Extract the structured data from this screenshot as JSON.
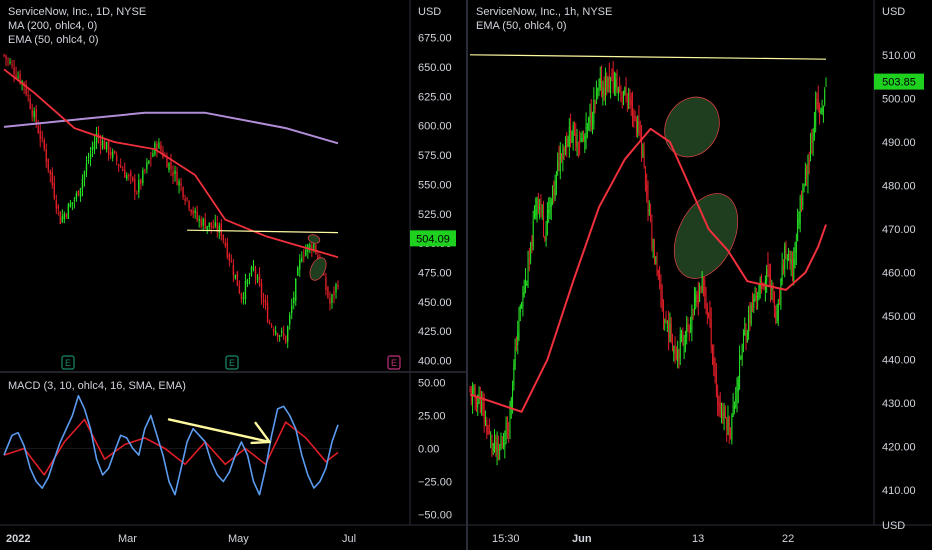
{
  "left": {
    "title": "ServiceNow, Inc., 1D, NYSE",
    "indicators": [
      "MA (200, ohlc4, 0)",
      "EMA (50, ohlc4, 0)"
    ],
    "currency": "USD",
    "macd_label": "MACD (3, 10, ohlc4, 16, SMA, EMA)",
    "last_price": "504.09",
    "earnings_marker": "E",
    "colors": {
      "up": "#26e026",
      "down": "#e01e28",
      "ma200": "#b28ed9",
      "ema50": "#f0303c",
      "trend": "#fffaa0",
      "macd": "#5b9cf0",
      "signal": "#e01e28",
      "price_badge": "#1fd11f"
    }
  },
  "right": {
    "title": "ServiceNow, Inc., 1h, NYSE",
    "indicators": [
      "EMA (50, ohlc4, 0)"
    ],
    "currency": "USD",
    "last_price": "503.85",
    "colors": {
      "up": "#26e026",
      "down": "#e01e28",
      "ema50": "#f0303c",
      "trend": "#fffaa0",
      "ellipse": "#1f3d1f",
      "price_badge": "#1fd11f"
    }
  },
  "chart_data": [
    {
      "type": "candlestick",
      "title": "ServiceNow, Inc., 1D, NYSE",
      "x_ticks": [
        "2022",
        "Mar",
        "May",
        "Jul"
      ],
      "y_ticks": [
        "675.00",
        "650.00",
        "625.00",
        "600.00",
        "575.00",
        "550.00",
        "525.00",
        "500.00",
        "475.00",
        "450.00",
        "425.00",
        "400.00"
      ],
      "ylim": [
        392,
        690
      ],
      "anchors": [
        [
          0,
          660
        ],
        [
          10,
          635
        ],
        [
          20,
          580
        ],
        [
          28,
          520
        ],
        [
          36,
          540
        ],
        [
          46,
          592
        ],
        [
          56,
          570
        ],
        [
          66,
          545
        ],
        [
          76,
          585
        ],
        [
          86,
          555
        ],
        [
          96,
          520
        ],
        [
          108,
          510
        ],
        [
          118,
          455
        ],
        [
          124,
          478
        ],
        [
          132,
          432
        ],
        [
          140,
          418
        ],
        [
          148,
          492
        ],
        [
          154,
          500
        ],
        [
          162,
          448
        ],
        [
          166,
          468
        ]
      ],
      "ma200": [
        [
          0,
          599
        ],
        [
          40,
          606
        ],
        [
          70,
          611
        ],
        [
          100,
          611
        ],
        [
          140,
          598
        ],
        [
          166,
          585
        ]
      ],
      "ema50": [
        [
          0,
          648
        ],
        [
          15,
          628
        ],
        [
          35,
          598
        ],
        [
          55,
          586
        ],
        [
          75,
          580
        ],
        [
          95,
          558
        ],
        [
          110,
          520
        ],
        [
          130,
          506
        ],
        [
          148,
          497
        ],
        [
          166,
          488
        ]
      ],
      "trendline": {
        "from": [
          91,
          511
        ],
        "to": [
          166,
          509
        ]
      },
      "last_price": 504.09
    },
    {
      "type": "line",
      "title": "MACD (3, 10, ohlc4, 16, SMA, EMA)",
      "y_ticks": [
        "50.00",
        "25.00",
        "0.00",
        "−25.00",
        "−50.00"
      ],
      "ylim": [
        -58,
        58
      ],
      "macd": [
        [
          0,
          -5
        ],
        [
          4,
          10
        ],
        [
          7,
          12
        ],
        [
          10,
          2
        ],
        [
          13,
          -15
        ],
        [
          16,
          -25
        ],
        [
          19,
          -30
        ],
        [
          22,
          -22
        ],
        [
          25,
          -8
        ],
        [
          28,
          5
        ],
        [
          31,
          15
        ],
        [
          34,
          25
        ],
        [
          37,
          40
        ],
        [
          40,
          30
        ],
        [
          43,
          15
        ],
        [
          46,
          -8
        ],
        [
          49,
          -20
        ],
        [
          52,
          -15
        ],
        [
          55,
          -2
        ],
        [
          58,
          10
        ],
        [
          61,
          8
        ],
        [
          64,
          0
        ],
        [
          67,
          -5
        ],
        [
          70,
          15
        ],
        [
          73,
          25
        ],
        [
          76,
          10
        ],
        [
          79,
          -5
        ],
        [
          82,
          -25
        ],
        [
          85,
          -35
        ],
        [
          88,
          -15
        ],
        [
          91,
          5
        ],
        [
          94,
          15
        ],
        [
          97,
          10
        ],
        [
          100,
          5
        ],
        [
          103,
          -10
        ],
        [
          106,
          -20
        ],
        [
          109,
          -25
        ],
        [
          112,
          -18
        ],
        [
          115,
          -5
        ],
        [
          118,
          5
        ],
        [
          121,
          -5
        ],
        [
          124,
          -25
        ],
        [
          127,
          -35
        ],
        [
          130,
          -15
        ],
        [
          133,
          10
        ],
        [
          136,
          30
        ],
        [
          139,
          32
        ],
        [
          142,
          25
        ],
        [
          145,
          15
        ],
        [
          148,
          -5
        ],
        [
          151,
          -20
        ],
        [
          154,
          -30
        ],
        [
          157,
          -25
        ],
        [
          160,
          -15
        ],
        [
          163,
          5
        ],
        [
          166,
          18
        ]
      ],
      "signal": [
        [
          0,
          -5
        ],
        [
          10,
          0
        ],
        [
          20,
          -20
        ],
        [
          30,
          5
        ],
        [
          40,
          22
        ],
        [
          50,
          -8
        ],
        [
          60,
          3
        ],
        [
          70,
          8
        ],
        [
          80,
          0
        ],
        [
          90,
          -12
        ],
        [
          100,
          5
        ],
        [
          110,
          -12
        ],
        [
          120,
          0
        ],
        [
          130,
          -12
        ],
        [
          140,
          20
        ],
        [
          150,
          8
        ],
        [
          160,
          -10
        ],
        [
          166,
          -3
        ]
      ],
      "arrow": {
        "from": [
          82,
          22
        ],
        "to": [
          132,
          5
        ]
      }
    },
    {
      "type": "candlestick",
      "title": "ServiceNow, Inc., 1h, NYSE",
      "x_ticks": [
        "15:30",
        "Jun",
        "13",
        "22"
      ],
      "y_ticks": [
        "510.00",
        "500.00",
        "490.00",
        "480.00",
        "470.00",
        "460.00",
        "450.00",
        "440.00",
        "430.00",
        "420.00",
        "410.00"
      ],
      "ylim": [
        402,
        518
      ],
      "anchors": [
        [
          0,
          432
        ],
        [
          8,
          430
        ],
        [
          15,
          422
        ],
        [
          22,
          418
        ],
        [
          30,
          426
        ],
        [
          38,
          450
        ],
        [
          46,
          462
        ],
        [
          52,
          478
        ],
        [
          58,
          470
        ],
        [
          66,
          480
        ],
        [
          70,
          488
        ],
        [
          78,
          492
        ],
        [
          88,
          490
        ],
        [
          100,
          502
        ],
        [
          110,
          504
        ],
        [
          122,
          500
        ],
        [
          132,
          492
        ],
        [
          140,
          470
        ],
        [
          150,
          450
        ],
        [
          160,
          442
        ],
        [
          170,
          448
        ],
        [
          180,
          458
        ],
        [
          186,
          448
        ],
        [
          192,
          430
        ],
        [
          202,
          424
        ],
        [
          212,
          445
        ],
        [
          222,
          455
        ],
        [
          232,
          460
        ],
        [
          238,
          448
        ],
        [
          244,
          465
        ],
        [
          250,
          460
        ],
        [
          256,
          476
        ],
        [
          262,
          485
        ],
        [
          268,
          498
        ],
        [
          272,
          496
        ],
        [
          276,
          502
        ]
      ],
      "ema50": [
        [
          0,
          432
        ],
        [
          20,
          430
        ],
        [
          40,
          428
        ],
        [
          60,
          440
        ],
        [
          80,
          458
        ],
        [
          100,
          475
        ],
        [
          120,
          486
        ],
        [
          140,
          493
        ],
        [
          155,
          490
        ],
        [
          170,
          480
        ],
        [
          185,
          470
        ],
        [
          200,
          465
        ],
        [
          215,
          458
        ],
        [
          230,
          457
        ],
        [
          245,
          456
        ],
        [
          260,
          460
        ],
        [
          270,
          466
        ],
        [
          276,
          471
        ]
      ],
      "trendline": {
        "from": [
          0,
          510
        ],
        "to": [
          276,
          509
        ]
      },
      "last_price": 503.85
    }
  ]
}
